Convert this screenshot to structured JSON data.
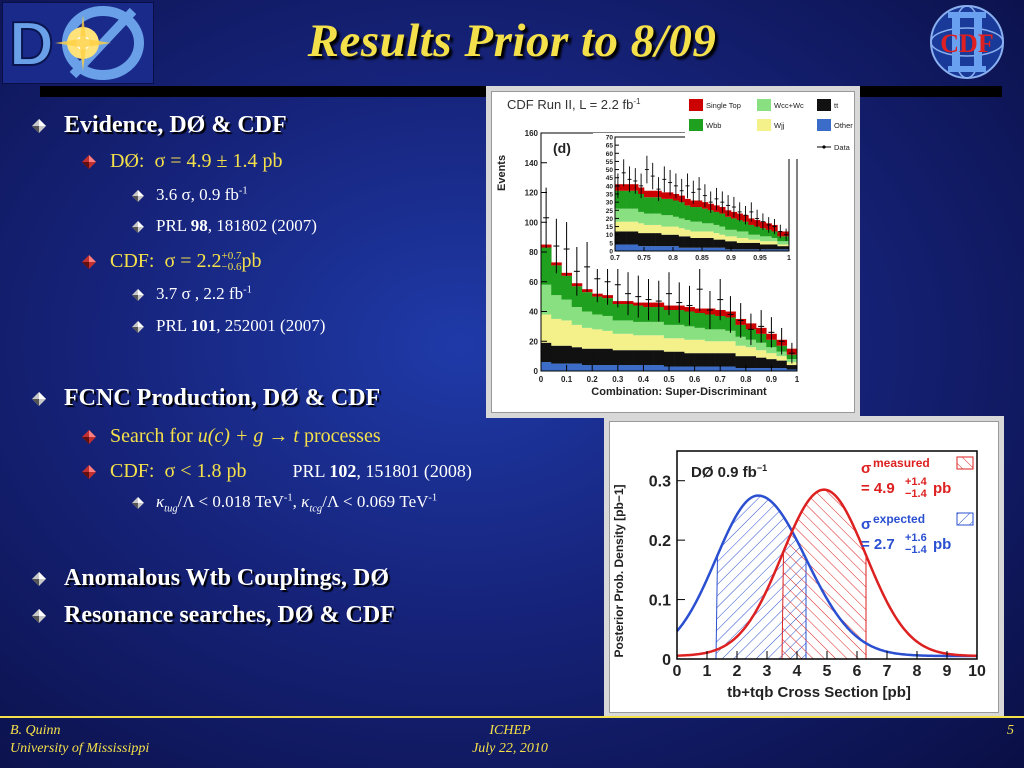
{
  "title": "Results Prior to 8/09",
  "logos": {
    "left_text": "DØ",
    "right_text": "CDF"
  },
  "bullets": {
    "evidence": "Evidence, DØ & CDF",
    "d0_label": "DØ:",
    "d0_value": "σ = 4.9 ± 1.4 pb",
    "d0_sig": "3.6 σ, 0.9 fb",
    "d0_sig_exp": "-1",
    "d0_prl_pre": "PRL ",
    "d0_prl_vol": "98",
    "d0_prl_post": ", 181802 (2007)",
    "cdf_label": "CDF:",
    "cdf_value_pre": "σ = 2.2",
    "cdf_up": "+0.7",
    "cdf_down": "−0.6",
    "cdf_unit": "pb",
    "cdf_sig": "3.7 σ , 2.2 fb",
    "cdf_sig_exp": "-1",
    "cdf_prl_pre": "PRL ",
    "cdf_prl_vol": "101",
    "cdf_prl_post": ",  252001 (2007)",
    "fcnc": "FCNC Production, DØ & CDF",
    "search_pre": "Search for ",
    "search_proc": "u(c) + g  → t",
    "search_post": " processes",
    "cdf2_label": "CDF:",
    "cdf2_value": "σ < 1.8 pb",
    "cdf2_prl_pre": "PRL ",
    "cdf2_prl_vol": "102",
    "cdf2_prl_post": ", 151801 (2008)",
    "kappa_tug": "κ",
    "kappa_tug_sub": "tug",
    "kappa_tug_rest": "/Λ < 0.018 TeV",
    "kappa_tug_exp": "-1",
    "kappa_sep": ", ",
    "kappa_tcg": "κ",
    "kappa_tcg_sub": "tcg",
    "kappa_tcg_rest": "/Λ < 0.069 TeV",
    "kappa_tcg_exp": "-1",
    "anomalous": "Anomalous Wtb Couplings, DØ",
    "resonance": "Resonance searches, DØ & CDF"
  },
  "footer": {
    "author": "B. Quinn",
    "affiliation": "University of Mississippi",
    "conference": "ICHEP",
    "date": "July 22, 2010",
    "page": "5"
  },
  "chart_data": [
    {
      "type": "area",
      "title": "CDF Run II, L = 2.2 fb-1",
      "panel_label": "(d)",
      "xlabel": "Combination: Super-Discriminant",
      "ylabel": "Events",
      "xlim": [
        0,
        1
      ],
      "ylim": [
        0,
        160
      ],
      "xticks": [
        "0",
        "0.1",
        "0.2",
        "0.3",
        "0.4",
        "0.5",
        "0.6",
        "0.7",
        "0.8",
        "0.9",
        "1"
      ],
      "yticks": [
        "0",
        "20",
        "40",
        "60",
        "80",
        "100",
        "120",
        "140",
        "160"
      ],
      "legend": [
        "Single Top",
        "Wcc+Wc",
        "tt",
        "Wbb",
        "Wjj",
        "Other",
        "Data"
      ],
      "colors": {
        "single_top": "#cc0000",
        "wcc": "#88e080",
        "tt": "#111111",
        "wbb": "#1fa01f",
        "wjj": "#f4f08a",
        "other": "#3a6cc8"
      },
      "x": [
        0.02,
        0.06,
        0.1,
        0.14,
        0.18,
        0.22,
        0.26,
        0.3,
        0.34,
        0.38,
        0.42,
        0.46,
        0.5,
        0.54,
        0.58,
        0.62,
        0.66,
        0.7,
        0.74,
        0.78,
        0.82,
        0.86,
        0.9,
        0.94,
        0.98
      ],
      "stack": [
        {
          "name": "Other",
          "values": [
            6,
            5,
            5,
            5,
            4,
            4,
            4,
            4,
            4,
            4,
            4,
            4,
            3,
            3,
            3,
            3,
            3,
            3,
            3,
            2,
            2,
            2,
            2,
            2,
            1
          ]
        },
        {
          "name": "tt",
          "values": [
            13,
            12,
            12,
            11,
            11,
            11,
            11,
            10,
            10,
            10,
            10,
            10,
            10,
            10,
            9,
            9,
            9,
            9,
            9,
            8,
            8,
            7,
            6,
            5,
            3
          ]
        },
        {
          "name": "Wjj",
          "values": [
            19,
            18,
            17,
            15,
            14,
            13,
            12,
            11,
            11,
            10,
            10,
            10,
            9,
            9,
            9,
            9,
            8,
            8,
            8,
            7,
            6,
            5,
            4,
            3,
            2
          ]
        },
        {
          "name": "Wcc+Wc",
          "values": [
            20,
            16,
            14,
            12,
            11,
            10,
            10,
            9,
            9,
            9,
            9,
            9,
            9,
            9,
            9,
            8,
            8,
            8,
            7,
            6,
            5,
            5,
            4,
            3,
            2
          ]
        },
        {
          "name": "Wbb",
          "values": [
            25,
            20,
            16,
            14,
            13,
            12,
            12,
            11,
            11,
            11,
            10,
            10,
            10,
            10,
            10,
            10,
            10,
            9,
            9,
            8,
            7,
            6,
            5,
            4,
            3
          ]
        },
        {
          "name": "Single Top",
          "values": [
            2,
            2,
            2,
            2,
            2,
            2,
            2,
            2,
            2,
            2,
            3,
            3,
            3,
            3,
            3,
            3,
            4,
            4,
            4,
            4,
            4,
            4,
            4,
            4,
            4
          ]
        }
      ],
      "data": [
        103,
        84,
        82,
        67,
        70,
        62,
        60,
        58,
        52,
        50,
        48,
        47,
        52,
        46,
        44,
        55,
        41,
        48,
        38,
        34,
        28,
        30,
        26,
        20,
        12
      ],
      "inset": {
        "xlim": [
          0.7,
          1
        ],
        "ylim": [
          0,
          70
        ],
        "xticks": [
          "0.7",
          "0.75",
          "0.8",
          "0.85",
          "0.9",
          "0.95",
          "1"
        ],
        "yticks": [
          "0",
          "5",
          "10",
          "15",
          "20",
          "25",
          "30",
          "35",
          "40",
          "45",
          "50",
          "55",
          "60",
          "65",
          "70"
        ]
      }
    },
    {
      "type": "line",
      "title": "DØ  0.9 fb−1",
      "xlabel": "tb+tqb  Cross Section  [pb]",
      "ylabel": "Posterior Prob. Density  [pb−1]",
      "xlim": [
        0,
        10
      ],
      "ylim": [
        0,
        0.35
      ],
      "xticks": [
        "0",
        "1",
        "2",
        "3",
        "4",
        "5",
        "6",
        "7",
        "8",
        "9",
        "10"
      ],
      "yticks": [
        "0",
        "0.1",
        "0.2",
        "0.3"
      ],
      "series": [
        {
          "name": "expected",
          "color": "#2a4fd0",
          "peak_x": 2.7,
          "peak_y": 0.27,
          "sigma_plus": 1.6,
          "sigma_minus": 1.4,
          "label": "σ expected = 2.7 +1.6 −1.4 pb"
        },
        {
          "name": "measured",
          "color": "#dd2020",
          "peak_x": 4.9,
          "peak_y": 0.28,
          "sigma_plus": 1.4,
          "sigma_minus": 1.4,
          "label": "σ measured = 4.9 +1.4 −1.4 pb"
        }
      ]
    }
  ]
}
